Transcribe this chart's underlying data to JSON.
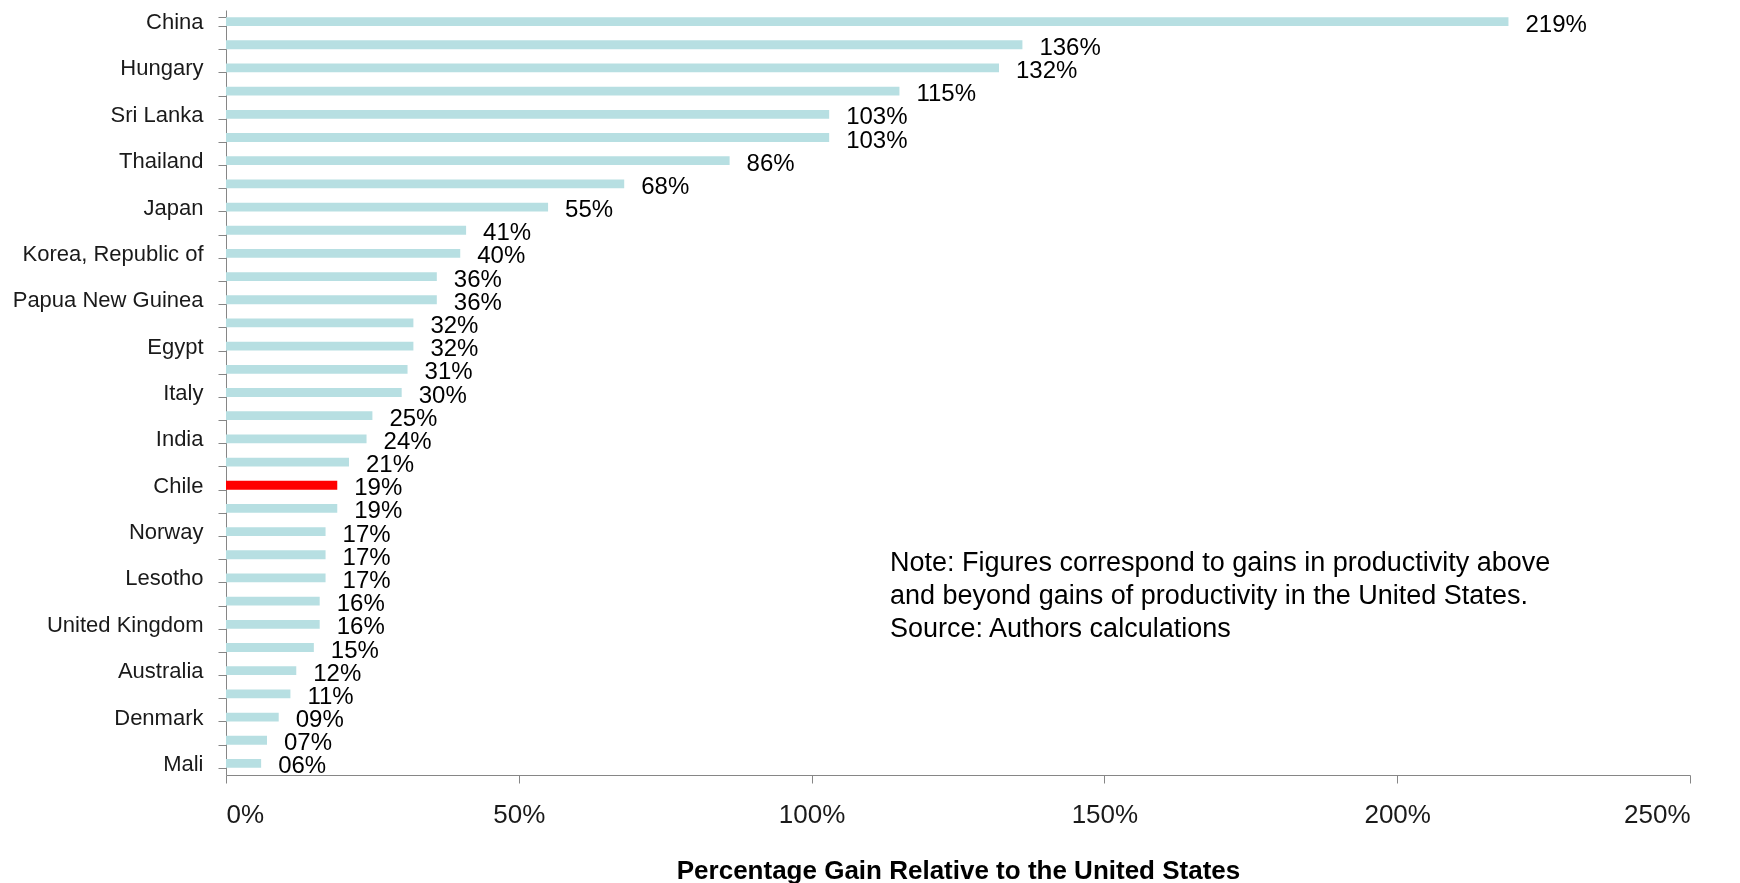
{
  "chart_data": {
    "type": "bar",
    "orientation": "horizontal",
    "categories": [
      "China",
      null,
      "Hungary",
      null,
      "Sri Lanka",
      null,
      "Thailand",
      null,
      "Japan",
      null,
      "Korea, Republic of",
      null,
      "Papua New Guinea",
      null,
      "Egypt",
      null,
      "Italy",
      null,
      "India",
      null,
      "Chile",
      null,
      "Norway",
      null,
      "Lesotho",
      null,
      "United Kingdom",
      null,
      "Australia",
      null,
      "Denmark",
      null,
      "Mali"
    ],
    "values": [
      219,
      136,
      132,
      115,
      103,
      103,
      86,
      68,
      55,
      41,
      40,
      36,
      36,
      32,
      32,
      31,
      30,
      25,
      24,
      21,
      19,
      19,
      17,
      17,
      17,
      16,
      16,
      15,
      12,
      11,
      9,
      7,
      6
    ],
    "value_labels": [
      "219%",
      "136%",
      "132%",
      "115%",
      "103%",
      "103%",
      "86%",
      "68%",
      "55%",
      "41%",
      "40%",
      "36%",
      "36%",
      "32%",
      "32%",
      "31%",
      "30%",
      "25%",
      "24%",
      "21%",
      "19%",
      "19%",
      "17%",
      "17%",
      "17%",
      "16%",
      "16%",
      "15%",
      "12%",
      "11%",
      "09%",
      "07%",
      "06%"
    ],
    "colors": [
      "#b7dfe2",
      "#b7dfe2",
      "#b7dfe2",
      "#b7dfe2",
      "#b7dfe2",
      "#b7dfe2",
      "#b7dfe2",
      "#b7dfe2",
      "#b7dfe2",
      "#b7dfe2",
      "#b7dfe2",
      "#b7dfe2",
      "#b7dfe2",
      "#b7dfe2",
      "#b7dfe2",
      "#b7dfe2",
      "#b7dfe2",
      "#b7dfe2",
      "#b7dfe2",
      "#b7dfe2",
      "#ff0000",
      "#b7dfe2",
      "#b7dfe2",
      "#b7dfe2",
      "#b7dfe2",
      "#b7dfe2",
      "#b7dfe2",
      "#b7dfe2",
      "#b7dfe2",
      "#b7dfe2",
      "#b7dfe2",
      "#b7dfe2",
      "#b7dfe2"
    ],
    "xlim": [
      0,
      250
    ],
    "xticks": [
      {
        "value": 0,
        "label": "0%"
      },
      {
        "value": 50,
        "label": "50%"
      },
      {
        "value": 100,
        "label": "100%"
      },
      {
        "value": 150,
        "label": "150%"
      },
      {
        "value": 200,
        "label": "200%"
      },
      {
        "value": 250,
        "label": "250%"
      }
    ],
    "xlabel": "Percentage Gain Relative to the United States",
    "grid": false,
    "annotations": [
      "Note: Figures correspond to gains in productivity above",
      "and beyond gains of productivity in the United States.",
      "Source: Authors calculations"
    ]
  }
}
